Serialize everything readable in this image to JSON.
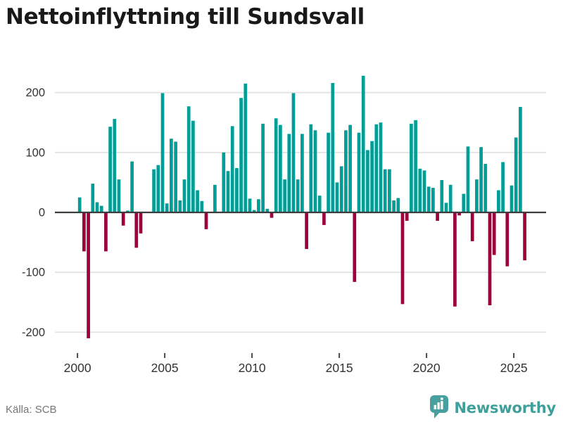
{
  "title": "Nettoinflyttning till Sundsvall",
  "footer": {
    "source": "Källa: SCB",
    "brand": "Newsworthy"
  },
  "colors": {
    "positive_bar": "#009e96",
    "negative_bar": "#9b003d",
    "gridline": "#e2e2e2",
    "zero_line": "#3c3c3c",
    "axis_text": "#333333",
    "tick_mark": "#4a4a4a",
    "title_text": "#191919",
    "source_text": "#767676",
    "brand_teal": "#3f9f9b",
    "background": "#ffffff"
  },
  "chart_data": {
    "type": "bar",
    "title": "Nettoinflyttning till Sundsvall",
    "frequency": "quarterly",
    "start": "2000-Q1",
    "end": "2025-Q3",
    "values": [
      25,
      -65,
      -210,
      48,
      17,
      11,
      -65,
      143,
      156,
      55,
      -22,
      3,
      85,
      -59,
      -35,
      0,
      0,
      72,
      79,
      199,
      15,
      123,
      118,
      20,
      55,
      177,
      153,
      37,
      19,
      -28,
      0,
      46,
      0,
      100,
      69,
      144,
      74,
      191,
      215,
      23,
      4,
      22,
      148,
      6,
      -9,
      157,
      146,
      55,
      131,
      199,
      55,
      131,
      -61,
      147,
      137,
      28,
      -21,
      133,
      216,
      50,
      77,
      137,
      146,
      -116,
      133,
      228,
      104,
      119,
      147,
      150,
      72,
      72,
      20,
      24,
      -153,
      -14,
      148,
      154,
      73,
      70,
      43,
      41,
      -14,
      54,
      16,
      46,
      -157,
      -5,
      31,
      110,
      -48,
      55,
      109,
      81,
      -155,
      -71,
      37,
      84,
      -90,
      45,
      125,
      176,
      -80
    ],
    "y_ticks": [
      -200,
      -100,
      0,
      100,
      200
    ],
    "x_ticks": [
      "2000",
      "2005",
      "2010",
      "2015",
      "2020",
      "2025"
    ],
    "ylim": [
      -232,
      272
    ],
    "grid": true,
    "legend": "none",
    "positive_color_meaning": "net in-migration",
    "negative_color_meaning": "net out-migration"
  }
}
